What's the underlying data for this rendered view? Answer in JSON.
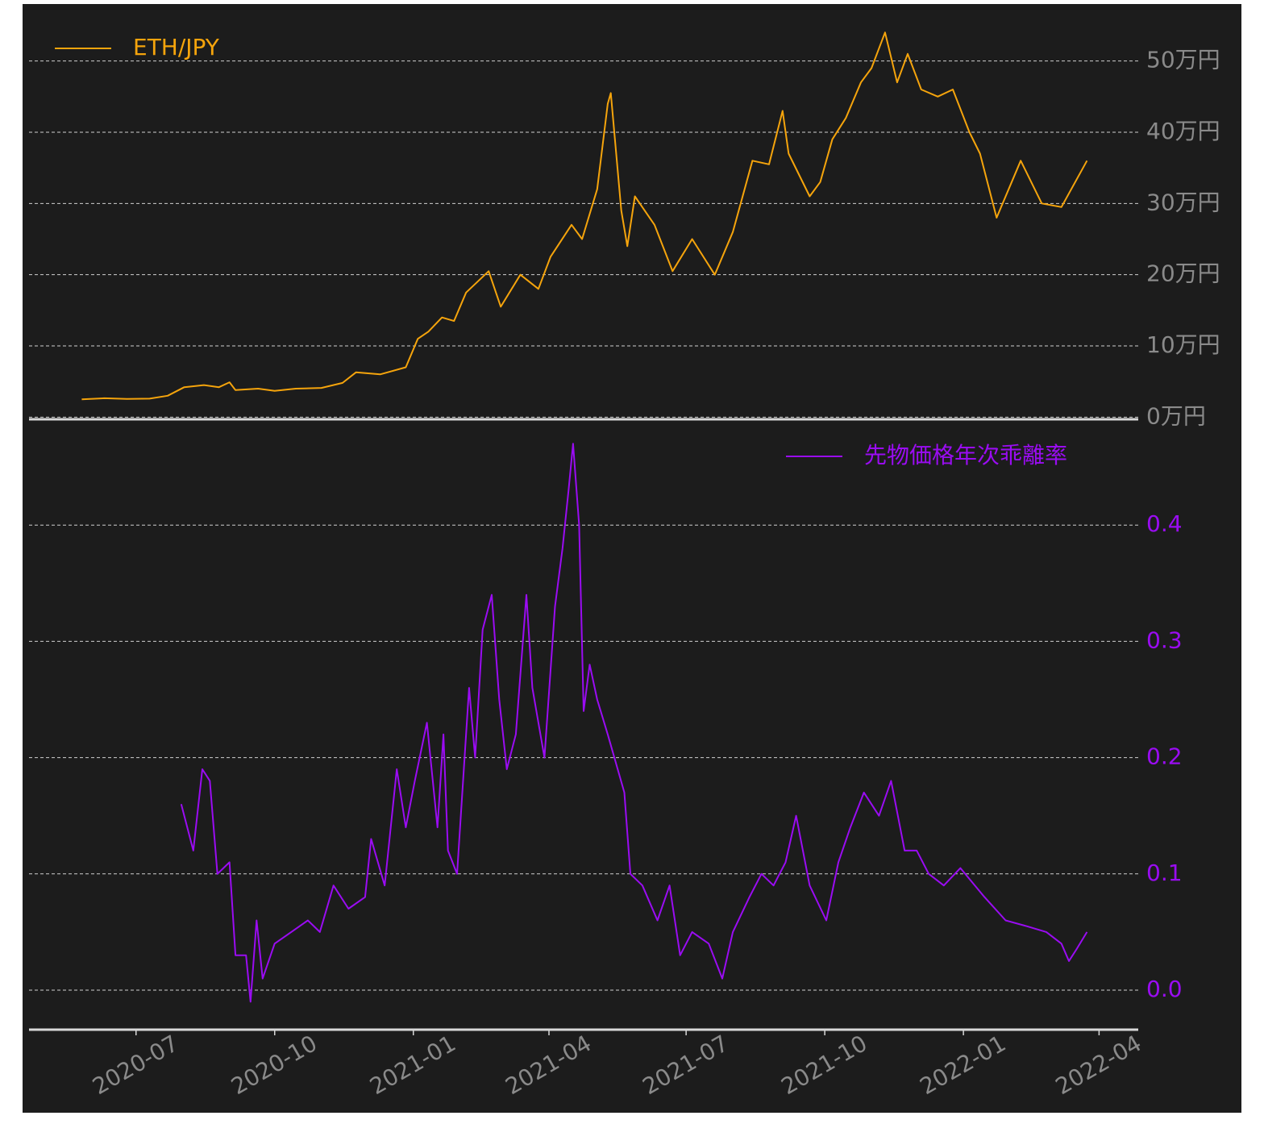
{
  "chart_data": [
    {
      "type": "line",
      "x": [
        "2020-05-26",
        "2020-06-10",
        "2020-06-25",
        "2020-07-10",
        "2020-07-22",
        "2020-08-02",
        "2020-08-15",
        "2020-08-25",
        "2020-09-01",
        "2020-09-05",
        "2020-09-20",
        "2020-10-01",
        "2020-10-15",
        "2020-11-01",
        "2020-11-15",
        "2020-11-24",
        "2020-12-10",
        "2020-12-27",
        "2021-01-04",
        "2021-01-11",
        "2021-01-20",
        "2021-01-28",
        "2021-02-05",
        "2021-02-20",
        "2021-02-28",
        "2021-03-13",
        "2021-03-25",
        "2021-04-02",
        "2021-04-16",
        "2021-04-23",
        "2021-05-03",
        "2021-05-10",
        "2021-05-12",
        "2021-05-19",
        "2021-05-23",
        "2021-05-28",
        "2021-06-10",
        "2021-06-22",
        "2021-07-05",
        "2021-07-20",
        "2021-08-01",
        "2021-08-14",
        "2021-08-25",
        "2021-09-03",
        "2021-09-07",
        "2021-09-21",
        "2021-09-28",
        "2021-10-06",
        "2021-10-15",
        "2021-10-25",
        "2021-11-01",
        "2021-11-10",
        "2021-11-18",
        "2021-11-25",
        "2021-12-04",
        "2021-12-15",
        "2021-12-25",
        "2022-01-05",
        "2022-01-12",
        "2022-01-23",
        "2022-02-08",
        "2022-02-22",
        "2022-03-07",
        "2022-03-24"
      ],
      "series": [
        {
          "name": "ETH/JPY",
          "color": "#f5a40c",
          "values": [
            25000,
            26500,
            25500,
            26000,
            30000,
            42000,
            45000,
            42000,
            49000,
            38000,
            40000,
            37000,
            40000,
            41000,
            48000,
            63000,
            60000,
            70000,
            110000,
            120000,
            140000,
            135000,
            175000,
            205000,
            155000,
            200000,
            180000,
            225000,
            270000,
            250000,
            320000,
            440000,
            455000,
            290000,
            240000,
            310000,
            270000,
            205000,
            250000,
            200000,
            260000,
            360000,
            355000,
            430000,
            370000,
            310000,
            330000,
            390000,
            420000,
            470000,
            490000,
            540000,
            470000,
            510000,
            460000,
            450000,
            460000,
            400000,
            370000,
            280000,
            360000,
            300000,
            295000,
            360000
          ]
        }
      ],
      "xlim": [
        "2020-04-21",
        "2022-04-27"
      ],
      "ylim": [
        -3000,
        580000
      ],
      "yticks": [
        {
          "value": 0,
          "label": "0万円"
        },
        {
          "value": 100000,
          "label": "10万円"
        },
        {
          "value": 200000,
          "label": "20万円"
        },
        {
          "value": 300000,
          "label": "30万円"
        },
        {
          "value": 400000,
          "label": "40万円"
        },
        {
          "value": 500000,
          "label": "50万円"
        }
      ],
      "grid": true,
      "legend": "upper left"
    },
    {
      "type": "line",
      "x": [
        "2020-07-31",
        "2020-08-08",
        "2020-08-14",
        "2020-08-19",
        "2020-08-24",
        "2020-09-01",
        "2020-09-05",
        "2020-09-12",
        "2020-09-15",
        "2020-09-19",
        "2020-09-23",
        "2020-10-01",
        "2020-10-12",
        "2020-10-23",
        "2020-10-31",
        "2020-11-09",
        "2020-11-19",
        "2020-11-30",
        "2020-12-04",
        "2020-12-13",
        "2020-12-21",
        "2020-12-27",
        "2021-01-02",
        "2021-01-10",
        "2021-01-17",
        "2021-01-21",
        "2021-01-24",
        "2021-01-30",
        "2021-02-07",
        "2021-02-11",
        "2021-02-16",
        "2021-02-22",
        "2021-02-27",
        "2021-03-04",
        "2021-03-10",
        "2021-03-17",
        "2021-03-21",
        "2021-03-29",
        "2021-04-05",
        "2021-04-10",
        "2021-04-14",
        "2021-04-17",
        "2021-04-21",
        "2021-04-24",
        "2021-04-28",
        "2021-05-03",
        "2021-05-10",
        "2021-05-21",
        "2021-05-25",
        "2021-06-02",
        "2021-06-12",
        "2021-06-20",
        "2021-06-27",
        "2021-07-05",
        "2021-07-16",
        "2021-07-25",
        "2021-08-01",
        "2021-08-12",
        "2021-08-20",
        "2021-08-28",
        "2021-09-05",
        "2021-09-12",
        "2021-09-21",
        "2021-10-02",
        "2021-10-10",
        "2021-10-18",
        "2021-10-27",
        "2021-11-06",
        "2021-11-14",
        "2021-11-23",
        "2021-12-01",
        "2021-12-09",
        "2021-12-19",
        "2021-12-30",
        "2022-01-15",
        "2022-01-29",
        "2022-02-12",
        "2022-02-25",
        "2022-03-07",
        "2022-03-12",
        "2022-03-17",
        "2022-03-24"
      ],
      "series": [
        {
          "name": "先物価格年次乖離率",
          "color": "#9a0cf2",
          "values": [
            0.16,
            0.12,
            0.19,
            0.18,
            0.1,
            0.11,
            0.03,
            0.03,
            -0.01,
            0.06,
            0.01,
            0.04,
            0.05,
            0.06,
            0.05,
            0.09,
            0.07,
            0.08,
            0.13,
            0.09,
            0.19,
            0.14,
            0.18,
            0.23,
            0.14,
            0.22,
            0.12,
            0.1,
            0.26,
            0.2,
            0.31,
            0.34,
            0.25,
            0.19,
            0.22,
            0.34,
            0.26,
            0.2,
            0.33,
            0.38,
            0.43,
            0.47,
            0.4,
            0.24,
            0.28,
            0.25,
            0.22,
            0.17,
            0.1,
            0.09,
            0.06,
            0.09,
            0.03,
            0.05,
            0.04,
            0.01,
            0.05,
            0.08,
            0.1,
            0.09,
            0.11,
            0.15,
            0.09,
            0.06,
            0.11,
            0.14,
            0.17,
            0.15,
            0.18,
            0.12,
            0.12,
            0.1,
            0.09,
            0.105,
            0.08,
            0.06,
            0.055,
            0.05,
            0.04,
            0.025,
            0.035,
            0.05
          ]
        }
      ],
      "xlim": [
        "2020-04-21",
        "2022-04-27"
      ],
      "xticks": [
        "2020-07",
        "2020-10",
        "2021-01",
        "2021-04",
        "2021-07",
        "2021-10",
        "2022-01",
        "2022-04"
      ],
      "ylim": [
        -0.034,
        0.491
      ],
      "yticks": [
        {
          "value": 0,
          "label": "0.0"
        },
        0.1,
        0.2,
        0.3,
        0.4
      ],
      "grid": true,
      "legend": "upper right"
    }
  ]
}
